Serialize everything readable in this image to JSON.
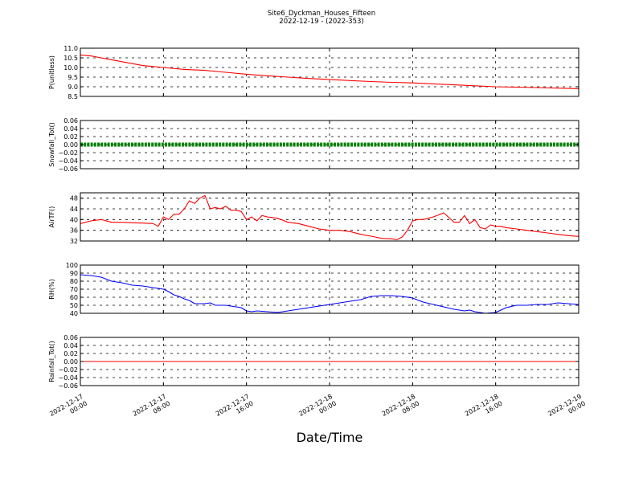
{
  "figure": {
    "title": "Site6_Dyckman_Houses_Fifteen",
    "subtitle": "2022-12-19 - (2022-353)",
    "xlabel": "Date/Time"
  },
  "chart_data": [
    {
      "type": "line",
      "ylabel": "P(unitless)",
      "ylim": [
        8.5,
        11.0
      ],
      "yticks": [
        "8.5",
        "9.0",
        "9.5",
        "10.0",
        "10.5",
        "11.0"
      ],
      "grid": true,
      "xlim": [
        0,
        48
      ],
      "series": [
        {
          "color": "#ff0000",
          "x": [
            0,
            1,
            2,
            3,
            4,
            5,
            6,
            7,
            8,
            10,
            12,
            14,
            16,
            18,
            20,
            22,
            24,
            26,
            28,
            30,
            32,
            34,
            36,
            38,
            40,
            42,
            44,
            46,
            48
          ],
          "y": [
            10.65,
            10.6,
            10.5,
            10.4,
            10.3,
            10.2,
            10.1,
            10.05,
            10.0,
            9.9,
            9.85,
            9.75,
            9.65,
            9.57,
            9.5,
            9.43,
            9.38,
            9.32,
            9.27,
            9.23,
            9.2,
            9.15,
            9.1,
            9.05,
            9.0,
            8.98,
            8.96,
            8.93,
            8.9
          ]
        }
      ]
    },
    {
      "type": "line",
      "ylabel": "Snowfall_Tot()",
      "ylim": [
        -0.06,
        0.06
      ],
      "yticks": [
        "−0.06",
        "−0.04",
        "−0.02",
        "0.00",
        "0.02",
        "0.04",
        "0.06"
      ],
      "grid": true,
      "xlim": [
        0,
        48
      ],
      "series": [
        {
          "color": "#008000",
          "marker": "dot",
          "x": [
            0,
            48
          ],
          "y": [
            0,
            0
          ]
        }
      ]
    },
    {
      "type": "line",
      "ylabel": "AirTF()",
      "ylim": [
        32,
        50
      ],
      "yticks": [
        "32",
        "36",
        "40",
        "44",
        "48"
      ],
      "grid": true,
      "xlim": [
        0,
        48
      ],
      "series": [
        {
          "color": "#ff0000",
          "x": [
            0,
            1,
            2,
            3,
            4,
            5,
            6,
            7,
            7.5,
            8,
            8.5,
            9,
            9.5,
            10,
            10.5,
            11,
            11.5,
            12,
            12.5,
            13,
            13.5,
            14,
            14.5,
            15,
            15.5,
            16,
            16.5,
            17,
            17.5,
            18,
            19,
            20,
            21,
            22,
            23,
            24,
            25,
            26,
            27,
            28,
            29,
            30,
            30.5,
            31,
            31.5,
            32,
            32.5,
            33,
            34,
            35,
            36,
            36.5,
            37,
            37.5,
            38,
            38.5,
            39,
            39.5,
            40,
            40.5,
            41,
            42,
            43,
            44,
            45,
            46,
            47,
            48
          ],
          "y": [
            38.5,
            39.5,
            40,
            39,
            39,
            38.8,
            38.7,
            38.5,
            37.5,
            41,
            40,
            42,
            42,
            44,
            47,
            46,
            48,
            49,
            44,
            44.5,
            44,
            45,
            43.5,
            43.5,
            43,
            40,
            41,
            39.5,
            41.5,
            41,
            40.5,
            39,
            38.5,
            37.5,
            36.5,
            36,
            36,
            35.5,
            34.5,
            33.8,
            33,
            32.8,
            32.5,
            33.5,
            36,
            39.5,
            40,
            40,
            41,
            42.5,
            39,
            39,
            41.5,
            38.5,
            40,
            37,
            36.5,
            38,
            37.5,
            37.5,
            37,
            36.5,
            36,
            35.5,
            35,
            34.5,
            34,
            33.7
          ]
        }
      ]
    },
    {
      "type": "line",
      "ylabel": "RH(%)",
      "ylim": [
        40,
        100
      ],
      "yticks": [
        "40",
        "50",
        "60",
        "70",
        "80",
        "90",
        "100"
      ],
      "grid": true,
      "xlim": [
        0,
        48
      ],
      "series": [
        {
          "color": "#0000ff",
          "x": [
            0,
            1,
            2,
            3,
            4,
            5,
            6,
            7,
            8,
            8.5,
            9,
            9.5,
            10,
            10.5,
            11,
            12,
            12.5,
            13,
            14,
            15,
            15.5,
            16,
            16.5,
            17,
            18,
            19,
            20,
            21,
            22,
            23,
            24,
            25,
            26,
            27,
            28,
            29,
            30,
            31,
            32,
            33,
            34,
            35,
            36,
            37,
            37.5,
            38,
            38.5,
            39,
            40,
            41,
            42,
            43,
            44,
            45,
            46,
            47,
            48
          ],
          "y": [
            88,
            87,
            85,
            80,
            78,
            75,
            74,
            72,
            70,
            67,
            63,
            61,
            58,
            56,
            52,
            52,
            53,
            50,
            50,
            48,
            47,
            43,
            42,
            43,
            42,
            41,
            43,
            45,
            47,
            49,
            51,
            53,
            55,
            57,
            61,
            62,
            62,
            61,
            59,
            54,
            51,
            48,
            45,
            43,
            44,
            42,
            41,
            40,
            41,
            47,
            50,
            50,
            51,
            51,
            53,
            52,
            51
          ]
        }
      ]
    },
    {
      "type": "line",
      "ylabel": "Rainfall_Tot()",
      "ylim": [
        -0.06,
        0.06
      ],
      "yticks": [
        "−0.06",
        "−0.04",
        "−0.02",
        "0.00",
        "0.02",
        "0.04",
        "0.06"
      ],
      "grid": true,
      "xlim": [
        0,
        48
      ],
      "series": [
        {
          "color": "#ff0000",
          "x": [
            0,
            48
          ],
          "y": [
            0,
            0
          ]
        }
      ]
    }
  ],
  "xticks": [
    {
      "x": 0,
      "date": "2022-12-17",
      "time": "00:00"
    },
    {
      "x": 8,
      "date": "2022-12-17",
      "time": "08:00"
    },
    {
      "x": 16,
      "date": "2022-12-17",
      "time": "16:00"
    },
    {
      "x": 24,
      "date": "2022-12-18",
      "time": "00:00"
    },
    {
      "x": 32,
      "date": "2022-12-18",
      "time": "08:00"
    },
    {
      "x": 40,
      "date": "2022-12-18",
      "time": "16:00"
    },
    {
      "x": 48,
      "date": "2022-12-19",
      "time": "00:00"
    }
  ]
}
